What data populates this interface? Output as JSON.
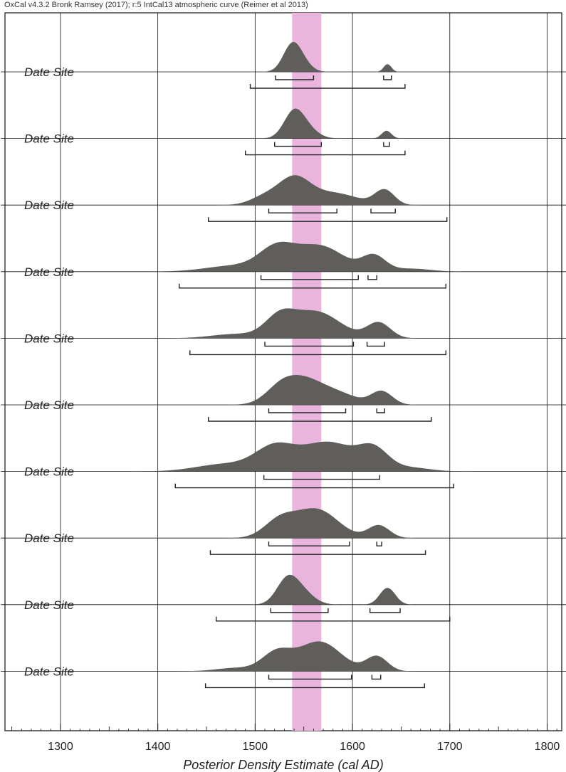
{
  "header": "OxCal v4.3.2 Bronk Ramsey (2017); r:5 IntCal13 atmospheric curve (Reimer et al 2013)",
  "chart_data": {
    "type": "area",
    "xlabel": "Posterior Density Estimate (cal AD)",
    "ylabel": "",
    "xlim": [
      1243,
      1815
    ],
    "x_ticks": [
      1300,
      1400,
      1500,
      1600,
      1700,
      1800
    ],
    "grid": true,
    "highlight_band": {
      "from": 1538,
      "to": 1568,
      "color": "#e9b5dc"
    },
    "colors": {
      "density": "#5f5e5b",
      "bracket": "#222222",
      "grid": "#111111"
    },
    "series": [
      {
        "label": "Date Site",
        "peaks": [
          [
            1537,
            1.0,
            9
          ],
          [
            1545,
            0.6,
            10
          ],
          [
            1636,
            0.38,
            4
          ]
        ],
        "range_68": [
          [
            1521,
            1560
          ],
          [
            1632,
            1640
          ]
        ],
        "range_95": [
          [
            1495,
            1654
          ]
        ]
      },
      {
        "label": "Date Site",
        "peaks": [
          [
            1539,
            1.0,
            10
          ],
          [
            1550,
            0.55,
            12
          ],
          [
            1635,
            0.36,
            5
          ]
        ],
        "range_68": [
          [
            1520,
            1568
          ],
          [
            1632,
            1638
          ]
        ],
        "range_95": [
          [
            1490,
            1654
          ]
        ]
      },
      {
        "label": "Date Site",
        "peaks": [
          [
            1540,
            0.95,
            16
          ],
          [
            1580,
            0.45,
            25
          ],
          [
            1633,
            0.55,
            10
          ],
          [
            1510,
            0.3,
            15
          ]
        ],
        "range_68": [
          [
            1514,
            1584
          ],
          [
            1619,
            1644
          ]
        ],
        "range_95": [
          [
            1452,
            1697
          ]
        ]
      },
      {
        "label": "Date Site",
        "peaks": [
          [
            1522,
            0.7,
            18
          ],
          [
            1566,
            0.85,
            25
          ],
          [
            1622,
            0.5,
            12
          ],
          [
            1480,
            0.2,
            30
          ],
          [
            1660,
            0.1,
            20
          ]
        ],
        "range_68": [
          [
            1506,
            1606
          ],
          [
            1616,
            1625
          ]
        ],
        "range_95": [
          [
            1422,
            1696
          ]
        ]
      },
      {
        "label": "Date Site",
        "peaks": [
          [
            1525,
            0.65,
            15
          ],
          [
            1562,
            0.95,
            25
          ],
          [
            1627,
            0.55,
            12
          ],
          [
            1480,
            0.15,
            25
          ]
        ],
        "range_68": [
          [
            1510,
            1601
          ],
          [
            1615,
            1633
          ]
        ],
        "range_95": [
          [
            1433,
            1696
          ]
        ]
      },
      {
        "label": "Date Site",
        "peaks": [
          [
            1550,
            0.95,
            22
          ],
          [
            1525,
            0.4,
            15
          ],
          [
            1630,
            0.5,
            11
          ],
          [
            1590,
            0.3,
            18
          ]
        ],
        "range_68": [
          [
            1514,
            1593
          ],
          [
            1625,
            1633
          ]
        ],
        "range_95": [
          [
            1452,
            1681
          ]
        ]
      },
      {
        "label": "Date Site",
        "peaks": [
          [
            1520,
            0.6,
            20
          ],
          [
            1575,
            0.78,
            28
          ],
          [
            1622,
            0.52,
            15
          ],
          [
            1470,
            0.2,
            30
          ],
          [
            1660,
            0.1,
            20
          ]
        ],
        "range_68": [
          [
            1509,
            1628
          ]
        ],
        "range_95": [
          [
            1418,
            1704
          ]
        ]
      },
      {
        "label": "Date Site",
        "peaks": [
          [
            1525,
            0.55,
            16
          ],
          [
            1563,
            0.95,
            22
          ],
          [
            1627,
            0.42,
            11
          ]
        ],
        "range_68": [
          [
            1514,
            1597
          ],
          [
            1625,
            1630
          ]
        ],
        "range_95": [
          [
            1454,
            1675
          ]
        ]
      },
      {
        "label": "Date Site",
        "peaks": [
          [
            1533,
            1.0,
            11
          ],
          [
            1549,
            0.45,
            12
          ],
          [
            1636,
            0.68,
            8
          ]
        ],
        "range_68": [
          [
            1516,
            1575
          ],
          [
            1618,
            1649
          ]
        ],
        "range_95": [
          [
            1460,
            1700
          ]
        ]
      },
      {
        "label": "Date Site",
        "peaks": [
          [
            1522,
            0.55,
            15
          ],
          [
            1566,
            0.9,
            22
          ],
          [
            1625,
            0.45,
            11
          ],
          [
            1480,
            0.1,
            20
          ]
        ],
        "range_68": [
          [
            1514,
            1599
          ],
          [
            1620,
            1629
          ]
        ],
        "range_95": [
          [
            1449,
            1674
          ]
        ]
      }
    ]
  }
}
